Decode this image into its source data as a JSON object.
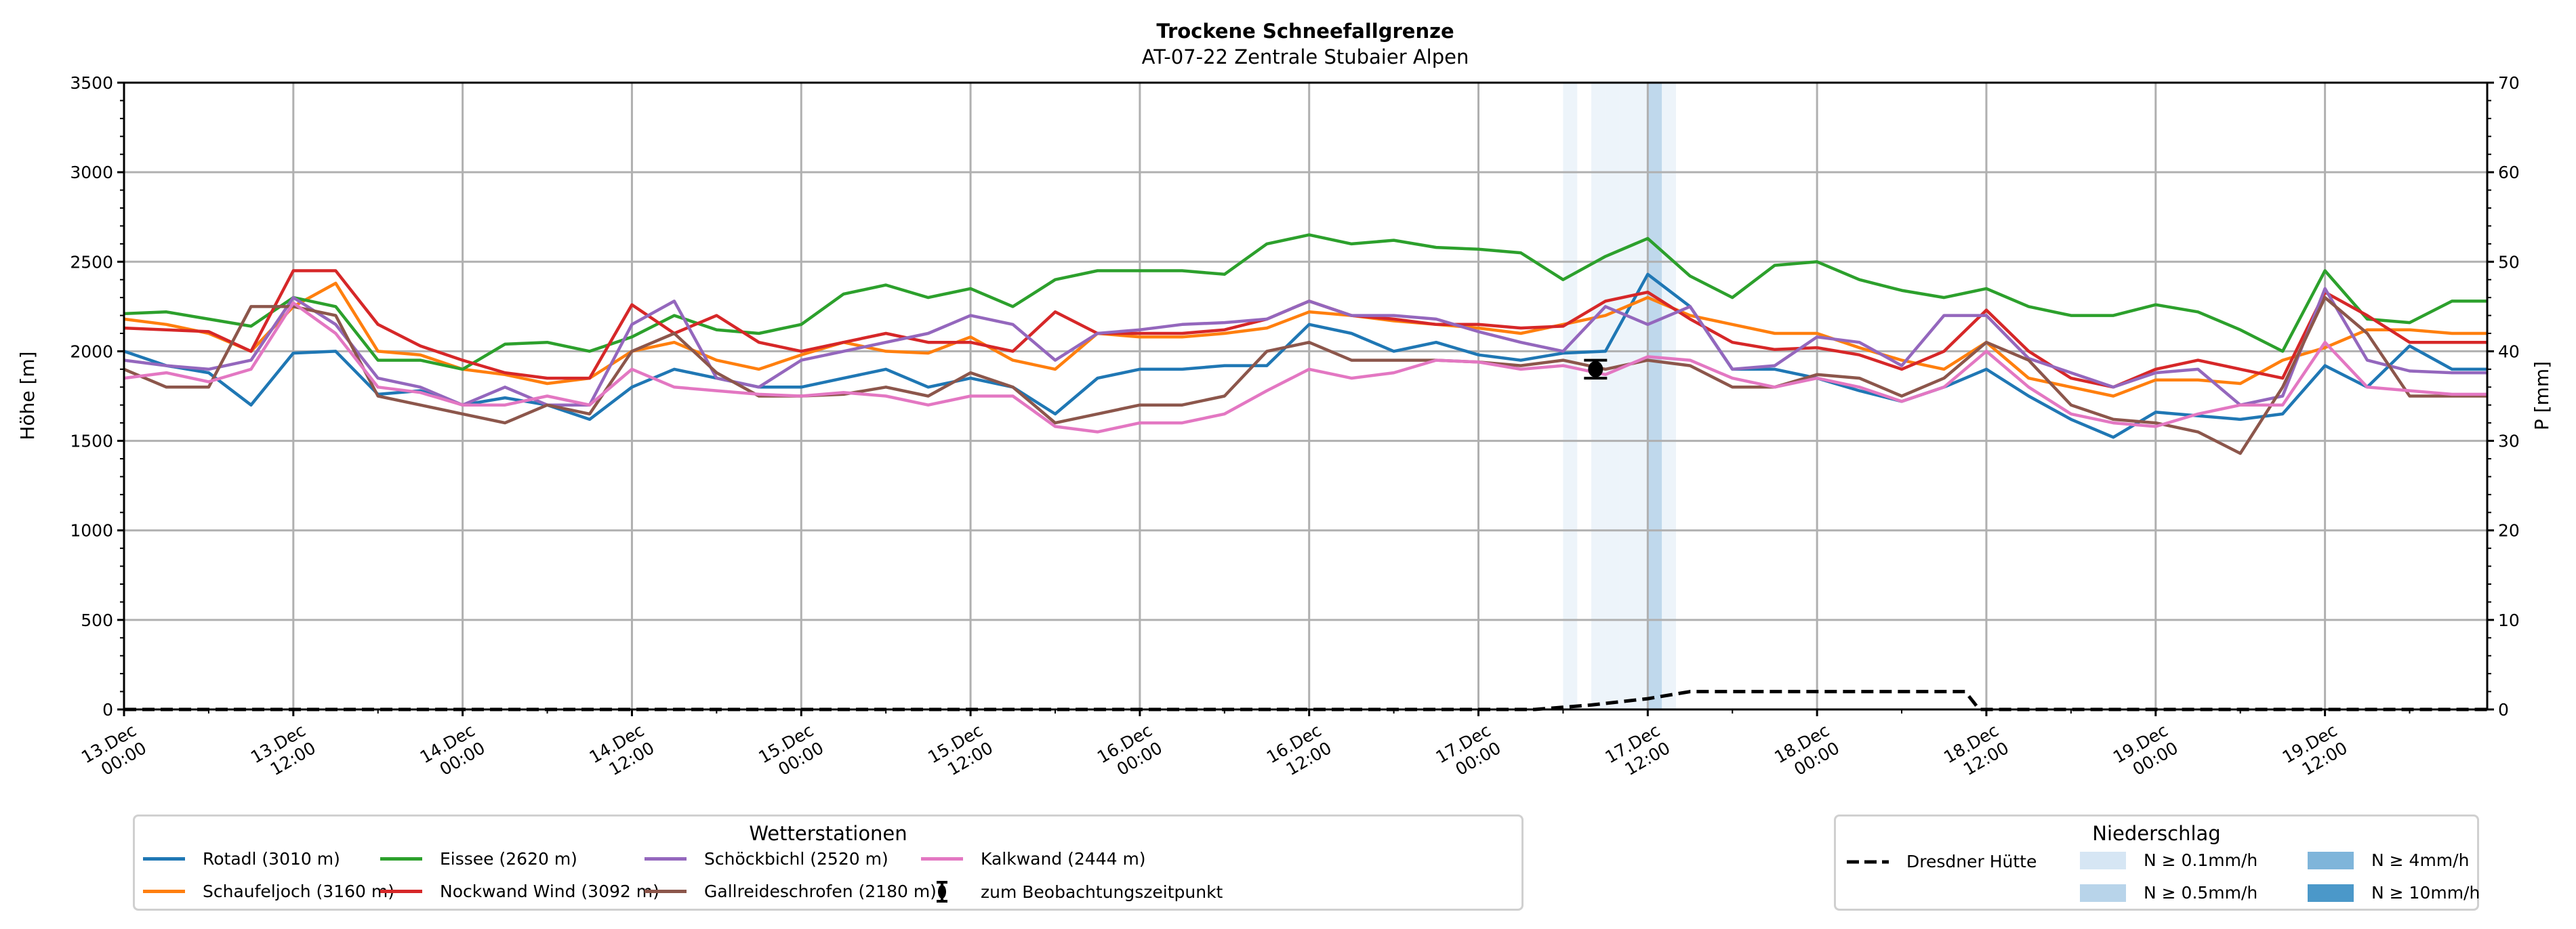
{
  "chart_data": {
    "type": "line",
    "title": "Trockene Schneefallgrenze",
    "subtitle": "AT-07-22 Zentrale Stubaier Alpen",
    "ylabel": "Höhe [m]",
    "y2label": "P [mm]",
    "ylim": [
      0,
      3500
    ],
    "y2lim": [
      0,
      70
    ],
    "xlim_hours": [
      0,
      167.5
    ],
    "grid": true,
    "yticks": [
      "0",
      "500",
      "1000",
      "1500",
      "2000",
      "2500",
      "3000",
      "3500"
    ],
    "y2ticks": [
      "0",
      "10",
      "20",
      "30",
      "40",
      "50",
      "60",
      "70"
    ],
    "xticks": [
      {
        "l1": "13.Dec",
        "l2": "00:00",
        "h": 0
      },
      {
        "l1": "13.Dec",
        "l2": "12:00",
        "h": 12
      },
      {
        "l1": "14.Dec",
        "l2": "00:00",
        "h": 24
      },
      {
        "l1": "14.Dec",
        "l2": "12:00",
        "h": 36
      },
      {
        "l1": "15.Dec",
        "l2": "00:00",
        "h": 48
      },
      {
        "l1": "15.Dec",
        "l2": "12:00",
        "h": 60
      },
      {
        "l1": "16.Dec",
        "l2": "00:00",
        "h": 72
      },
      {
        "l1": "16.Dec",
        "l2": "12:00",
        "h": 84
      },
      {
        "l1": "17.Dec",
        "l2": "00:00",
        "h": 96
      },
      {
        "l1": "17.Dec",
        "l2": "12:00",
        "h": 108
      },
      {
        "l1": "18.Dec",
        "l2": "00:00",
        "h": 120
      },
      {
        "l1": "18.Dec",
        "l2": "12:00",
        "h": 132
      },
      {
        "l1": "19.Dec",
        "l2": "00:00",
        "h": 144
      },
      {
        "l1": "19.Dec",
        "l2": "12:00",
        "h": 156
      }
    ],
    "x_hours": [
      0,
      3,
      6,
      9,
      12,
      15,
      18,
      21,
      24,
      27,
      30,
      33,
      36,
      39,
      42,
      45,
      48,
      51,
      54,
      57,
      60,
      63,
      66,
      69,
      72,
      75,
      78,
      81,
      84,
      87,
      90,
      93,
      96,
      99,
      102,
      105,
      108,
      111,
      114,
      117,
      120,
      123,
      126,
      129,
      132,
      135,
      138,
      141,
      144,
      147,
      150,
      153,
      156,
      159,
      162,
      165
    ],
    "series": [
      {
        "name": "Rotadl (3010 m)",
        "color": "#1f77b4",
        "values": [
          2000,
          1920,
          1880,
          1700,
          1990,
          2000,
          1760,
          1780,
          1700,
          1740,
          1700,
          1620,
          1800,
          1900,
          1850,
          1800,
          1800,
          1850,
          1900,
          1800,
          1850,
          1800,
          1650,
          1850,
          1900,
          1900,
          1920,
          1920,
          2150,
          2100,
          2000,
          2050,
          1980,
          1950,
          1990,
          2000,
          2430,
          2250,
          1900,
          1900,
          1850,
          1780,
          1720,
          1800,
          1900,
          1750,
          1620,
          1520,
          1660,
          1640,
          1620,
          1650,
          1920,
          1800,
          2030,
          1900
        ]
      },
      {
        "name": "Schaufeljoch (3160 m)",
        "color": "#ff7f0e",
        "values": [
          2180,
          2150,
          2100,
          2000,
          2250,
          2380,
          2000,
          1980,
          1900,
          1870,
          1820,
          1850,
          2000,
          2050,
          1950,
          1900,
          1980,
          2050,
          2000,
          1990,
          2080,
          1950,
          1900,
          2100,
          2080,
          2080,
          2100,
          2130,
          2220,
          2200,
          2170,
          2150,
          2130,
          2100,
          2150,
          2200,
          2300,
          2200,
          2150,
          2100,
          2100,
          2020,
          1950,
          1900,
          2050,
          1850,
          1800,
          1750,
          1840,
          1840,
          1820,
          1950,
          2020,
          2120,
          2120,
          2100
        ]
      },
      {
        "name": "Eissee (2620 m)",
        "color": "#2ca02c",
        "values": [
          2210,
          2220,
          2180,
          2140,
          2300,
          2250,
          1950,
          1950,
          1900,
          2040,
          2050,
          2000,
          2080,
          2200,
          2120,
          2100,
          2150,
          2320,
          2370,
          2300,
          2350,
          2250,
          2400,
          2450,
          2450,
          2450,
          2430,
          2600,
          2650,
          2600,
          2620,
          2580,
          2570,
          2550,
          2400,
          2530,
          2630,
          2420,
          2300,
          2480,
          2500,
          2400,
          2340,
          2300,
          2350,
          2250,
          2200,
          2200,
          2260,
          2220,
          2120,
          2000,
          2450,
          2180,
          2160,
          2280
        ]
      },
      {
        "name": "Nockwand Wind (3092 m)",
        "color": "#d62728",
        "values": [
          2130,
          2120,
          2110,
          2000,
          2450,
          2450,
          2150,
          2030,
          1950,
          1880,
          1850,
          1850,
          2260,
          2100,
          2200,
          2050,
          2000,
          2050,
          2100,
          2050,
          2050,
          2000,
          2220,
          2100,
          2100,
          2100,
          2120,
          2180,
          2280,
          2200,
          2180,
          2150,
          2150,
          2130,
          2140,
          2280,
          2330,
          2180,
          2050,
          2010,
          2020,
          1980,
          1900,
          2000,
          2230,
          2000,
          1850,
          1800,
          1900,
          1950,
          1900,
          1850,
          2330,
          2200,
          2050,
          2050
        ]
      },
      {
        "name": "Schöckbichl (2520 m)",
        "color": "#9467bd",
        "values": [
          1950,
          1920,
          1900,
          1950,
          2300,
          2150,
          1850,
          1800,
          1700,
          1800,
          1700,
          1700,
          2150,
          2280,
          1850,
          1800,
          1950,
          2000,
          2050,
          2100,
          2200,
          2150,
          1950,
          2100,
          2120,
          2150,
          2160,
          2180,
          2280,
          2200,
          2200,
          2180,
          2110,
          2050,
          2000,
          2250,
          2150,
          2250,
          1900,
          1920,
          2080,
          2050,
          1920,
          2200,
          2200,
          1960,
          1880,
          1800,
          1880,
          1900,
          1700,
          1750,
          2350,
          1950,
          1890,
          1880
        ]
      },
      {
        "name": "Gallreideschrofen (2180 m)",
        "color": "#8c564b",
        "values": [
          1900,
          1800,
          1800,
          2250,
          2250,
          2200,
          1750,
          1700,
          1650,
          1600,
          1700,
          1650,
          2000,
          2100,
          1880,
          1750,
          1750,
          1760,
          1800,
          1750,
          1880,
          1800,
          1600,
          1650,
          1700,
          1700,
          1750,
          2000,
          2050,
          1950,
          1950,
          1950,
          1940,
          1920,
          1950,
          1900,
          1950,
          1920,
          1800,
          1800,
          1870,
          1850,
          1750,
          1850,
          2050,
          1950,
          1700,
          1620,
          1600,
          1550,
          1430,
          1800,
          2300,
          2100,
          1750,
          1750
        ]
      },
      {
        "name": "Kalkwand (2444 m)",
        "color": "#e377c2",
        "values": [
          1850,
          1880,
          1830,
          1900,
          2270,
          2100,
          1800,
          1770,
          1700,
          1700,
          1750,
          1700,
          1900,
          1800,
          1780,
          1760,
          1750,
          1770,
          1750,
          1700,
          1750,
          1750,
          1580,
          1550,
          1600,
          1600,
          1650,
          1780,
          1900,
          1850,
          1880,
          1950,
          1940,
          1900,
          1920,
          1870,
          1970,
          1950,
          1850,
          1800,
          1850,
          1800,
          1720,
          1800,
          2000,
          1800,
          1650,
          1600,
          1580,
          1650,
          1700,
          1700,
          2050,
          1800,
          1780,
          1760
        ]
      }
    ],
    "observation": {
      "name": "zum Beobachtungszeitpunkt",
      "hour": 104.3,
      "value": 1900,
      "error": 50
    },
    "precipitation": {
      "name": "Dresdner Hütte",
      "points": [
        [
          0,
          0
        ],
        [
          100,
          0
        ],
        [
          104,
          0.5
        ],
        [
          108,
          1.2
        ],
        [
          111,
          2.0
        ],
        [
          130.5,
          2.0
        ],
        [
          131.5,
          0
        ],
        [
          167.5,
          0
        ]
      ],
      "bands": [
        {
          "hour": 102,
          "level": 0
        },
        {
          "hour": 104,
          "level": 0
        },
        {
          "hour": 105,
          "level": 0
        },
        {
          "hour": 106,
          "level": 0
        },
        {
          "hour": 107,
          "level": 0
        },
        {
          "hour": 108,
          "level": 1
        },
        {
          "hour": 109,
          "level": 0
        }
      ]
    },
    "legend_stations_title": "Wetterstationen",
    "legend_precip_title": "Niederschlag",
    "precip_levels": [
      {
        "label": "N ≥ 0.1mm/h",
        "color": "#d6e6f4"
      },
      {
        "label": "N ≥ 0.5mm/h",
        "color": "#b8d4ea"
      },
      {
        "label": "N ≥ 4mm/h",
        "color": "#7fb5da"
      },
      {
        "label": "N ≥ 10mm/h",
        "color": "#4b98c9"
      }
    ]
  }
}
